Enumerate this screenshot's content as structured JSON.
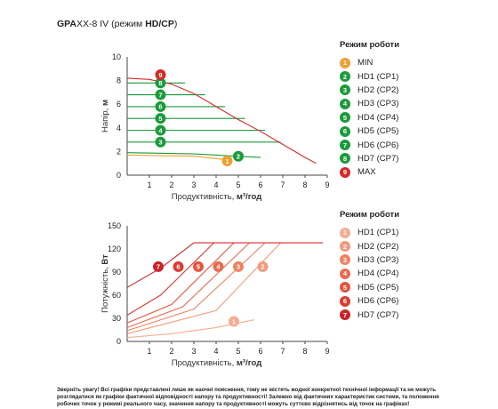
{
  "title": {
    "model": "GPA",
    "model_suffix": "XX-8 IV",
    "mode_prefix": " (режим ",
    "mode": "HD/CP",
    "mode_suffix": ")"
  },
  "colors": {
    "red": "#d22a2a",
    "green": "#1c9a3c",
    "orange": "#f0a030"
  },
  "chart_data": [
    {
      "type": "line",
      "title": "",
      "xlabel": "Продуктивність, м³/год",
      "xlabel_plain": "Продуктивність, ",
      "xlabel_bold": "м³/год",
      "ylabel": "Напір, м",
      "ylabel_plain": "Напір, ",
      "ylabel_bold": "м",
      "xlim": [
        0,
        9
      ],
      "ylim": [
        0,
        10
      ],
      "xticks": [
        "1",
        "2",
        "3",
        "4",
        "5",
        "6",
        "7",
        "8",
        "9"
      ],
      "yticks": [
        "0",
        "2",
        "4",
        "6",
        "8",
        "10"
      ],
      "grid": false,
      "legend_title": "Режим роботи",
      "legend_position": "right",
      "series": [
        {
          "name": "MIN",
          "badge": "1",
          "color": "#f0a030",
          "x": [
            0,
            3.0,
            4.5
          ],
          "y": [
            1.7,
            1.6,
            1.3
          ],
          "marker": [
            4.5,
            1.2
          ]
        },
        {
          "name": "HD1 (CP1)",
          "badge": "2",
          "color": "#1c9a3c",
          "x": [
            0,
            3.0,
            6.0
          ],
          "y": [
            1.9,
            1.8,
            1.5
          ],
          "marker": [
            5.0,
            1.6
          ]
        },
        {
          "name": "HD2 (CP2)",
          "badge": "3",
          "color": "#1c9a3c",
          "x": [
            0,
            6.9
          ],
          "y": [
            2.8,
            2.8
          ],
          "marker": [
            1.5,
            2.8
          ]
        },
        {
          "name": "HD3 (CP3)",
          "badge": "4",
          "color": "#1c9a3c",
          "x": [
            0,
            6.2
          ],
          "y": [
            3.8,
            3.8
          ],
          "marker": [
            1.5,
            3.8
          ]
        },
        {
          "name": "HD4 (CP4)",
          "badge": "5",
          "color": "#1c9a3c",
          "x": [
            0,
            5.3
          ],
          "y": [
            4.8,
            4.8
          ],
          "marker": [
            1.5,
            4.8
          ]
        },
        {
          "name": "HD5 (CP5)",
          "badge": "6",
          "color": "#1c9a3c",
          "x": [
            0,
            4.4
          ],
          "y": [
            5.8,
            5.8
          ],
          "marker": [
            1.5,
            5.8
          ]
        },
        {
          "name": "HD6 (CP6)",
          "badge": "7",
          "color": "#1c9a3c",
          "x": [
            0,
            3.5
          ],
          "y": [
            6.8,
            6.8
          ],
          "marker": [
            1.5,
            6.8
          ]
        },
        {
          "name": "HD7 (CP7)",
          "badge": "8",
          "color": "#1c9a3c",
          "x": [
            0,
            2.6
          ],
          "y": [
            7.8,
            7.8
          ],
          "marker": [
            1.5,
            7.8
          ]
        },
        {
          "name": "MAX",
          "badge": "9",
          "color": "#d22a2a",
          "x": [
            0,
            1.0,
            2.0,
            3.0,
            4.0,
            5.0,
            6.0,
            7.0,
            8.0,
            8.5
          ],
          "y": [
            8.2,
            8.1,
            7.7,
            6.9,
            5.8,
            4.7,
            3.7,
            2.6,
            1.5,
            1.0
          ],
          "marker": [
            1.5,
            8.5
          ]
        }
      ]
    },
    {
      "type": "line",
      "title": "",
      "xlabel": "Продуктивність, м³/год",
      "xlabel_plain": "Продуктивність, ",
      "xlabel_bold": "м³/год",
      "ylabel": "Потужність, Вт",
      "ylabel_plain": "Потужність, ",
      "ylabel_bold": "Вт",
      "xlim": [
        0,
        9
      ],
      "ylim": [
        0,
        150
      ],
      "xticks": [
        "1",
        "2",
        "3",
        "4",
        "5",
        "6",
        "7",
        "8",
        "9"
      ],
      "yticks": [
        "0",
        "30",
        "60",
        "90",
        "120",
        "150"
      ],
      "grid": false,
      "legend_title": "Режим роботи",
      "legend_position": "right",
      "series": [
        {
          "name": "HD1 (CP1)",
          "badge": "1",
          "color": "#f4ad91",
          "x": [
            0,
            2.0,
            4.0,
            5.7
          ],
          "y": [
            5,
            10,
            18,
            28
          ],
          "marker": [
            4.8,
            26
          ]
        },
        {
          "name": "HD2 (CP2)",
          "badge": "2",
          "color": "#f29a7a",
          "x": [
            0,
            4.0,
            6.9
          ],
          "y": [
            10,
            40,
            128
          ],
          "marker": [
            6.1,
            97
          ]
        },
        {
          "name": "HD3 (CP3)",
          "badge": "3",
          "color": "#ee8364",
          "x": [
            0,
            3.0,
            6.2
          ],
          "y": [
            14,
            42,
            128
          ],
          "marker": [
            5.0,
            97
          ]
        },
        {
          "name": "HD4 (CP4)",
          "badge": "4",
          "color": "#ea6b50",
          "x": [
            0,
            2.5,
            5.5
          ],
          "y": [
            18,
            45,
            128
          ],
          "marker": [
            4.1,
            97
          ]
        },
        {
          "name": "HD5 (CP5)",
          "badge": "5",
          "color": "#e3553f",
          "x": [
            0,
            2.0,
            4.8
          ],
          "y": [
            24,
            48,
            128
          ],
          "marker": [
            3.2,
            97
          ]
        },
        {
          "name": "HD6 (CP6)",
          "badge": "6",
          "color": "#d93c32",
          "x": [
            0,
            1.5,
            3.9
          ],
          "y": [
            34,
            60,
            128
          ],
          "marker": [
            2.3,
            97
          ]
        },
        {
          "name": "HD7 (CP7)",
          "badge": "7",
          "color": "#c8242a",
          "x": [
            0,
            1.5,
            3.0
          ],
          "y": [
            70,
            95,
            128
          ],
          "marker": [
            1.4,
            97
          ]
        },
        {
          "name": "",
          "color": "#d22a2a",
          "x": [
            3.0,
            8.8
          ],
          "y": [
            128,
            128
          ]
        }
      ]
    }
  ],
  "footnote": "Зверніть увагу! Всі графіки представлені лише як наочні пояснення, тому не містять жодної конкретної технічної інформації та не можуть розглядатися як графіки фактичної відповідності напору та продуктивності! Залежно від фактичних характеристик системи, та положення робочих точок у режимі реального часу, значення напору та продуктивності можуть суттєво відрізнятись від точок на графіках!"
}
